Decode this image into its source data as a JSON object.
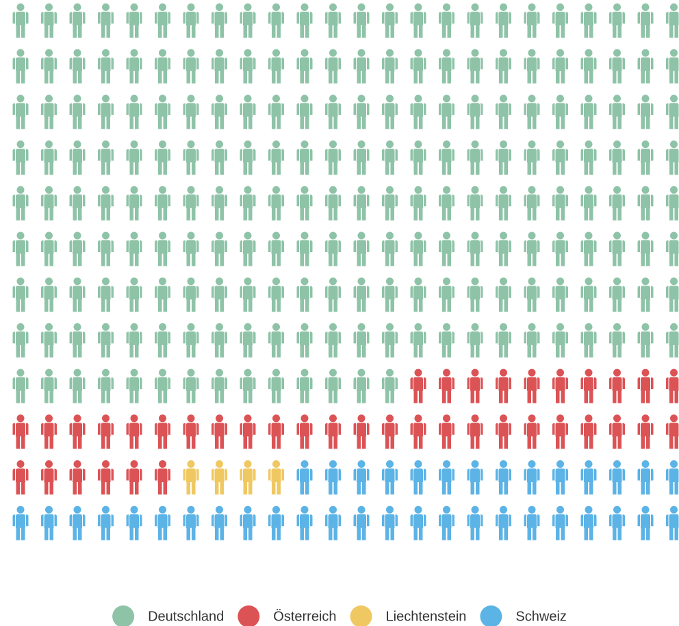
{
  "chart_data": {
    "type": "pictogram",
    "series": [
      {
        "name": "Deutschland",
        "color": "#8ec3a7",
        "value": 206
      },
      {
        "name": "Österreich",
        "color": "#dc5356",
        "value": 40
      },
      {
        "name": "Liechtenstein",
        "color": "#f0c862",
        "value": 4
      },
      {
        "name": "Schweiz",
        "color": "#5cb3e6",
        "value": 38
      }
    ],
    "legend": "bottom"
  }
}
